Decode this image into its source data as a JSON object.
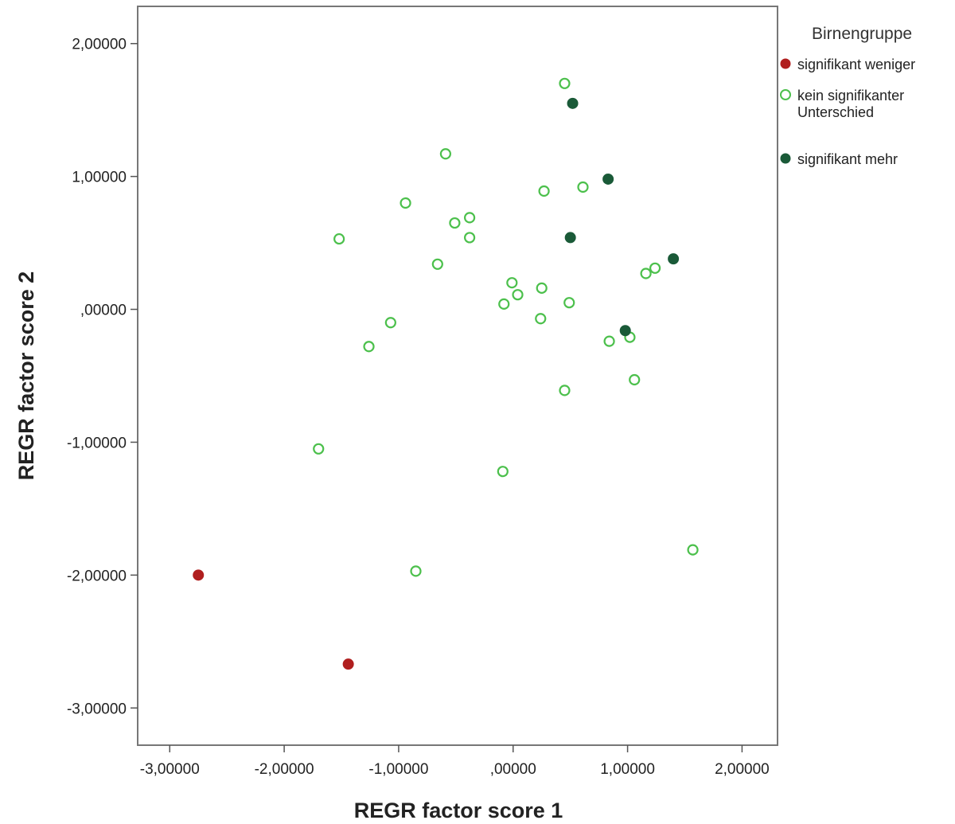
{
  "chart_data": {
    "type": "scatter",
    "xlabel": "REGR factor score   1",
    "ylabel": "REGR factor score   2",
    "xlim": [
      -3.28,
      2.31
    ],
    "ylim": [
      -3.28,
      2.28
    ],
    "x_ticks": [
      {
        "value": -3,
        "label": "-3,00000"
      },
      {
        "value": -2,
        "label": "-2,00000"
      },
      {
        "value": -1,
        "label": "-1,00000"
      },
      {
        "value": 0,
        "label": ",00000"
      },
      {
        "value": 1,
        "label": "1,00000"
      },
      {
        "value": 2,
        "label": "2,00000"
      }
    ],
    "y_ticks": [
      {
        "value": 2,
        "label": "2,00000"
      },
      {
        "value": 1,
        "label": "1,00000"
      },
      {
        "value": 0,
        "label": ",00000"
      },
      {
        "value": -1,
        "label": "-1,00000"
      },
      {
        "value": -2,
        "label": "-2,00000"
      },
      {
        "value": -3,
        "label": "-3,00000"
      }
    ],
    "legend": {
      "title": "Birnengruppe",
      "placement": "right"
    },
    "series": [
      {
        "name": "signifikant weniger",
        "legend_lines": [
          "signifikant weniger"
        ],
        "color": "#b01e1e",
        "marker": "filled-circle",
        "points": [
          {
            "x": -2.75,
            "y": -2.0
          },
          {
            "x": -1.44,
            "y": -2.67
          }
        ]
      },
      {
        "name": "kein signifikanter Unterschied",
        "legend_lines": [
          "kein signifikanter",
          "Unterschied"
        ],
        "color": "#4cc04c",
        "marker": "open-circle",
        "points": [
          {
            "x": 0.45,
            "y": 1.7
          },
          {
            "x": -0.59,
            "y": 1.17
          },
          {
            "x": 0.27,
            "y": 0.89
          },
          {
            "x": 0.61,
            "y": 0.92
          },
          {
            "x": -0.94,
            "y": 0.8
          },
          {
            "x": -0.51,
            "y": 0.65
          },
          {
            "x": -0.38,
            "y": 0.69
          },
          {
            "x": -1.52,
            "y": 0.53
          },
          {
            "x": -0.38,
            "y": 0.54
          },
          {
            "x": -0.66,
            "y": 0.34
          },
          {
            "x": 1.24,
            "y": 0.31
          },
          {
            "x": 1.16,
            "y": 0.27
          },
          {
            "x": -0.01,
            "y": 0.2
          },
          {
            "x": 0.25,
            "y": 0.16
          },
          {
            "x": 0.04,
            "y": 0.11
          },
          {
            "x": -0.08,
            "y": 0.04
          },
          {
            "x": 0.49,
            "y": 0.05
          },
          {
            "x": 0.24,
            "y": -0.07
          },
          {
            "x": -1.07,
            "y": -0.1
          },
          {
            "x": 1.02,
            "y": -0.21
          },
          {
            "x": 0.84,
            "y": -0.24
          },
          {
            "x": -1.26,
            "y": -0.28
          },
          {
            "x": 1.06,
            "y": -0.53
          },
          {
            "x": 0.45,
            "y": -0.61
          },
          {
            "x": -1.7,
            "y": -1.05
          },
          {
            "x": -0.09,
            "y": -1.22
          },
          {
            "x": 1.57,
            "y": -1.81
          },
          {
            "x": -0.85,
            "y": -1.97
          }
        ]
      },
      {
        "name": "signifikant mehr",
        "legend_lines": [
          "signifikant mehr"
        ],
        "color": "#1a5a38",
        "marker": "filled-circle",
        "points": [
          {
            "x": 0.52,
            "y": 1.55
          },
          {
            "x": 0.83,
            "y": 0.98
          },
          {
            "x": 0.5,
            "y": 0.54
          },
          {
            "x": 1.4,
            "y": 0.38
          },
          {
            "x": 0.98,
            "y": -0.16
          }
        ]
      }
    ]
  }
}
